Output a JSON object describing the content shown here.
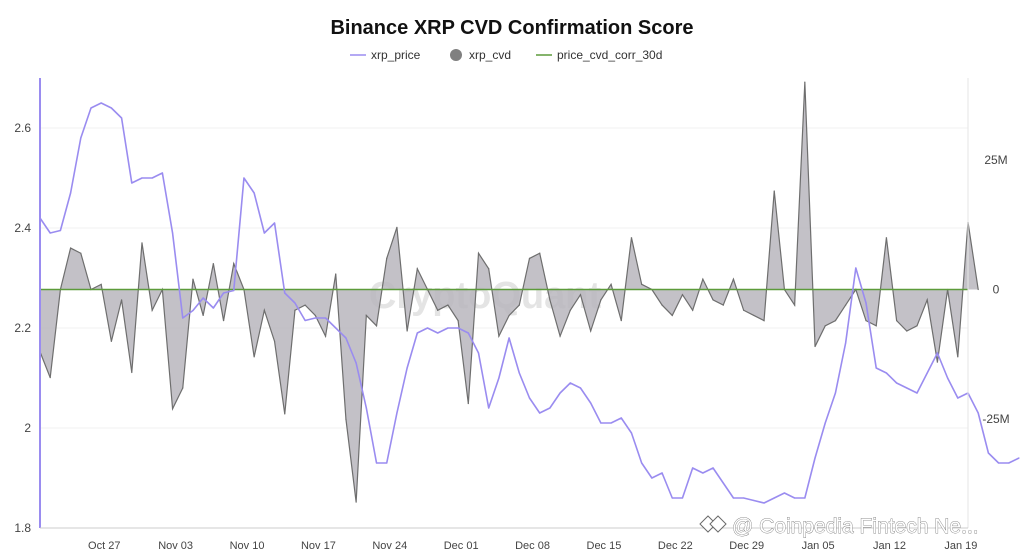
{
  "chart_data": {
    "type": "line",
    "title": "Binance XRP CVD Confirmation Score",
    "legend": [
      {
        "key": "xrp_price",
        "label": "xrp_price",
        "color": "#9a8cf0",
        "marker": "line"
      },
      {
        "key": "xrp_cvd",
        "label": "xrp_cvd",
        "color": "#808080",
        "marker": "dot"
      },
      {
        "key": "price_cvd_corr_30d",
        "label": "price_cvd_corr_30d",
        "color": "#5c9b3a",
        "marker": "line"
      }
    ],
    "legend_position": "top-center",
    "x_tick_labels": [
      "Oct 27",
      "Nov 03",
      "Nov 10",
      "Nov 17",
      "Nov 24",
      "Dec 01",
      "Dec 08",
      "Dec 15",
      "Dec 22",
      "Dec 29",
      "Jan 05",
      "Jan 12",
      "Jan 19"
    ],
    "x_range": [
      0,
      91
    ],
    "x_tick_positions": [
      6.3,
      13.3,
      20.3,
      27.3,
      34.3,
      41.3,
      48.3,
      55.3,
      62.3,
      69.3,
      76.3,
      83.3,
      90.3
    ],
    "y_left": {
      "range": [
        1.8,
        2.7
      ],
      "ticks": [
        1.8,
        2,
        2.2,
        2.4,
        2.6
      ],
      "tick_labels": [
        "1.8",
        "2",
        "2.2",
        "2.4",
        "2.6"
      ]
    },
    "y_right": {
      "range": [
        -46,
        40.8
      ],
      "ticks": [
        -25,
        0,
        25
      ],
      "tick_labels": [
        "-25M",
        "0",
        "25M"
      ],
      "unit": "M"
    },
    "series": [
      {
        "name": "xrp_price",
        "axis": "left",
        "values": [
          2.42,
          2.39,
          2.395,
          2.47,
          2.58,
          2.64,
          2.65,
          2.64,
          2.62,
          2.49,
          2.5,
          2.5,
          2.51,
          2.39,
          2.22,
          2.235,
          2.26,
          2.24,
          2.27,
          2.275,
          2.5,
          2.47,
          2.39,
          2.41,
          2.27,
          2.25,
          2.215,
          2.22,
          2.22,
          2.2,
          2.18,
          2.13,
          2.04,
          1.93,
          1.93,
          2.03,
          2.12,
          2.19,
          2.2,
          2.19,
          2.2,
          2.2,
          2.19,
          2.15,
          2.04,
          2.1,
          2.18,
          2.11,
          2.06,
          2.03,
          2.04,
          2.07,
          2.09,
          2.08,
          2.05,
          2.01,
          2.01,
          2.02,
          1.99,
          1.93,
          1.9,
          1.91,
          1.86,
          1.86,
          1.92,
          1.91,
          1.92,
          1.89,
          1.86,
          1.86,
          1.855,
          1.85,
          1.86,
          1.87,
          1.86,
          1.86,
          1.94,
          2.01,
          2.07,
          2.17,
          2.32,
          2.25,
          2.12,
          2.11,
          2.09,
          2.08,
          2.07,
          2.11,
          2.15,
          2.1,
          2.06,
          2.07,
          2.03,
          1.95,
          1.93,
          1.93,
          1.94
        ]
      },
      {
        "name": "xrp_cvd",
        "axis": "right",
        "values": [
          -12,
          -17,
          0,
          8,
          7,
          0,
          1,
          -10,
          -2,
          -16,
          9,
          -4,
          0,
          -23,
          -19,
          2,
          -5,
          5,
          -6,
          5,
          0,
          -13,
          -4,
          -10,
          -24,
          -4,
          -3,
          -5,
          -9,
          3,
          -25,
          -41,
          -5,
          -7,
          6,
          12,
          -8,
          4,
          0,
          -4,
          -3,
          -6,
          -22,
          7,
          4,
          -9,
          -5,
          -3,
          6,
          7,
          -2,
          -9,
          -4,
          -1,
          -8,
          -2,
          1,
          -6,
          10,
          1,
          0,
          -3,
          -5,
          -1,
          -4,
          2,
          -2,
          -3,
          2,
          -4,
          -5,
          -6,
          19,
          0,
          -3,
          40,
          -11,
          -7,
          -6,
          -3,
          0,
          -6,
          -7,
          10,
          -6,
          -8,
          -7,
          -2,
          -14,
          0,
          -13,
          13,
          0
        ]
      },
      {
        "name": "price_cvd_corr_30d",
        "axis": "right",
        "values": [
          0
        ]
      }
    ],
    "grid": "horizontal-light",
    "watermark": "CryptoQuant"
  },
  "credit": "@ Coinpedia Fintech Ne..."
}
